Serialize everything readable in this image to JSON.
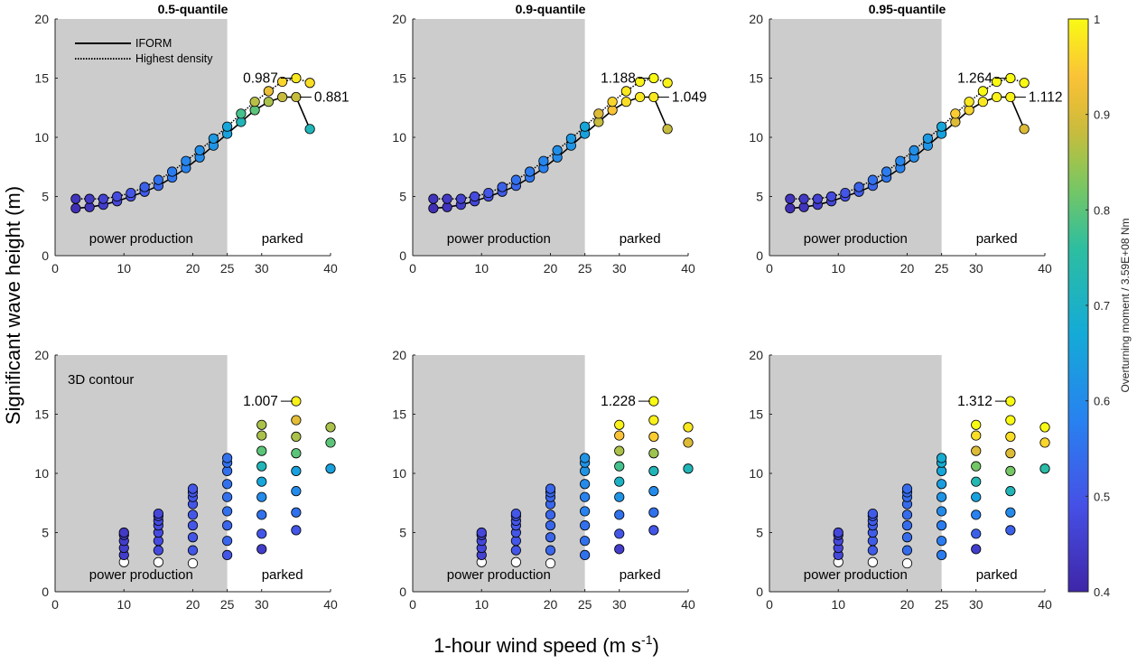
{
  "figure": {
    "ylabel": "Significant wave height (m)",
    "xlabel_main": "1-hour wind speed (m s",
    "xlabel_sup": "-1",
    "xlabel_end": ")",
    "colorbar_label": "Overturning moment / 3.59E+08 Nm",
    "colorbar_ticks": [
      "0.4",
      "0.5",
      "0.6",
      "0.7",
      "0.8",
      "0.9",
      "1"
    ],
    "colorbar_range": [
      0.4,
      1.0
    ],
    "legend": {
      "solid": "IFORM",
      "dotted": "Highest density"
    },
    "region_labels": {
      "power": "power production",
      "parked": "parked"
    },
    "contour3d_label": "3D contour"
  },
  "chart_data": [
    {
      "type": "scatter",
      "row": 1,
      "col": 1,
      "title": "0.5-quantile",
      "xlim": [
        0,
        40
      ],
      "ylim": [
        0,
        20
      ],
      "xticks": [
        "0",
        "10",
        "20",
        "25",
        "30",
        "40"
      ],
      "yticks": [
        "0",
        "5",
        "10",
        "15",
        "20"
      ],
      "shaded_x": [
        0,
        25
      ],
      "series": [
        {
          "name": "IFORM",
          "x": [
            3,
            5,
            7,
            9,
            11,
            13,
            15,
            17,
            19,
            21,
            23,
            25,
            27,
            29,
            31,
            33,
            35,
            37
          ],
          "y": [
            4.0,
            4.1,
            4.3,
            4.6,
            5.0,
            5.4,
            5.9,
            6.6,
            7.4,
            8.3,
            9.3,
            10.3,
            11.3,
            12.3,
            13.0,
            13.4,
            13.4,
            10.7
          ],
          "c": [
            0.42,
            0.43,
            0.45,
            0.47,
            0.49,
            0.51,
            0.53,
            0.56,
            0.58,
            0.6,
            0.62,
            0.65,
            0.72,
            0.8,
            0.86,
            0.88,
            0.88,
            0.72
          ]
        },
        {
          "name": "Highest density",
          "x": [
            3,
            5,
            7,
            9,
            11,
            13,
            15,
            17,
            19,
            21,
            23,
            25,
            27,
            29,
            31,
            33,
            35,
            37
          ],
          "y": [
            4.8,
            4.8,
            4.8,
            5.0,
            5.3,
            5.8,
            6.4,
            7.1,
            8.0,
            8.9,
            9.9,
            10.9,
            12.0,
            13.0,
            13.9,
            14.7,
            15.0,
            14.6
          ],
          "c": [
            0.43,
            0.44,
            0.46,
            0.48,
            0.5,
            0.52,
            0.55,
            0.57,
            0.59,
            0.61,
            0.63,
            0.66,
            0.78,
            0.87,
            0.92,
            0.96,
            0.98,
            0.97
          ]
        }
      ],
      "annotations": [
        {
          "text": "0.987",
          "x": 35,
          "y": 15.0
        },
        {
          "text": "0.881",
          "x": 35,
          "y": 13.4
        }
      ]
    },
    {
      "type": "scatter",
      "row": 1,
      "col": 2,
      "title": "0.9-quantile",
      "xlim": [
        0,
        40
      ],
      "ylim": [
        0,
        20
      ],
      "xticks": [
        "0",
        "10",
        "20",
        "25",
        "30",
        "40"
      ],
      "yticks": [
        "0",
        "5",
        "10",
        "15",
        "20"
      ],
      "shaded_x": [
        0,
        25
      ],
      "series": [
        {
          "name": "IFORM",
          "x": [
            3,
            5,
            7,
            9,
            11,
            13,
            15,
            17,
            19,
            21,
            23,
            25,
            27,
            29,
            31,
            33,
            35,
            37
          ],
          "y": [
            4.0,
            4.1,
            4.3,
            4.6,
            5.0,
            5.4,
            5.9,
            6.6,
            7.4,
            8.3,
            9.3,
            10.3,
            11.3,
            12.3,
            13.0,
            13.4,
            13.4,
            10.7
          ],
          "c": [
            0.42,
            0.43,
            0.45,
            0.47,
            0.49,
            0.51,
            0.53,
            0.56,
            0.58,
            0.6,
            0.62,
            0.65,
            0.88,
            0.94,
            0.97,
            0.98,
            0.98,
            0.88
          ]
        },
        {
          "name": "Highest density",
          "x": [
            3,
            5,
            7,
            9,
            11,
            13,
            15,
            17,
            19,
            21,
            23,
            25,
            27,
            29,
            31,
            33,
            35,
            37
          ],
          "y": [
            4.8,
            4.8,
            4.8,
            5.0,
            5.3,
            5.8,
            6.4,
            7.1,
            8.0,
            8.9,
            9.9,
            10.9,
            12.0,
            13.0,
            13.9,
            14.7,
            15.0,
            14.6
          ],
          "c": [
            0.43,
            0.44,
            0.46,
            0.48,
            0.5,
            0.52,
            0.55,
            0.57,
            0.59,
            0.61,
            0.63,
            0.66,
            0.9,
            0.96,
            0.98,
            0.99,
            1.0,
            0.99
          ]
        }
      ],
      "annotations": [
        {
          "text": "1.188",
          "x": 35,
          "y": 15.0
        },
        {
          "text": "1.049",
          "x": 35,
          "y": 13.4
        }
      ]
    },
    {
      "type": "scatter",
      "row": 1,
      "col": 3,
      "title": "0.95-quantile",
      "xlim": [
        0,
        40
      ],
      "ylim": [
        0,
        20
      ],
      "xticks": [
        "0",
        "10",
        "20",
        "25",
        "30",
        "40"
      ],
      "yticks": [
        "0",
        "5",
        "10",
        "15",
        "20"
      ],
      "shaded_x": [
        0,
        25
      ],
      "series": [
        {
          "name": "IFORM",
          "x": [
            3,
            5,
            7,
            9,
            11,
            13,
            15,
            17,
            19,
            21,
            23,
            25,
            27,
            29,
            31,
            33,
            35,
            37
          ],
          "y": [
            4.0,
            4.1,
            4.3,
            4.6,
            5.0,
            5.4,
            5.9,
            6.6,
            7.4,
            8.3,
            9.3,
            10.3,
            11.3,
            12.3,
            13.0,
            13.4,
            13.4,
            10.7
          ],
          "c": [
            0.42,
            0.43,
            0.45,
            0.47,
            0.49,
            0.51,
            0.53,
            0.56,
            0.58,
            0.6,
            0.62,
            0.65,
            0.9,
            0.96,
            0.98,
            0.99,
            0.99,
            0.9
          ]
        },
        {
          "name": "Highest density",
          "x": [
            3,
            5,
            7,
            9,
            11,
            13,
            15,
            17,
            19,
            21,
            23,
            25,
            27,
            29,
            31,
            33,
            35,
            37
          ],
          "y": [
            4.8,
            4.8,
            4.8,
            5.0,
            5.3,
            5.8,
            6.4,
            7.1,
            8.0,
            8.9,
            9.9,
            10.9,
            12.0,
            13.0,
            13.9,
            14.7,
            15.0,
            14.6
          ],
          "c": [
            0.43,
            0.44,
            0.46,
            0.48,
            0.5,
            0.52,
            0.55,
            0.57,
            0.59,
            0.61,
            0.63,
            0.66,
            0.95,
            0.98,
            1.0,
            1.0,
            1.0,
            1.0
          ]
        }
      ],
      "annotations": [
        {
          "text": "1.264",
          "x": 35,
          "y": 15.0
        },
        {
          "text": "1.112",
          "x": 35,
          "y": 13.4
        }
      ]
    },
    {
      "type": "scatter",
      "row": 2,
      "col": 1,
      "xlim": [
        0,
        40
      ],
      "ylim": [
        0,
        20
      ],
      "xticks": [
        "0",
        "10",
        "20",
        "25",
        "30",
        "40"
      ],
      "yticks": [
        "0",
        "5",
        "10",
        "15",
        "20"
      ],
      "shaded_x": [
        0,
        25
      ],
      "points": {
        "x": [
          10,
          10,
          10,
          10,
          10,
          10,
          15,
          15,
          15,
          15,
          15,
          15,
          15,
          15,
          20,
          20,
          20,
          20,
          20,
          20,
          20,
          20,
          20,
          25,
          25,
          25,
          25,
          25,
          25,
          25,
          25,
          25,
          30,
          30,
          30,
          30,
          30,
          30,
          30,
          30,
          30,
          35,
          35,
          35,
          35,
          35,
          35,
          35,
          35,
          40,
          40,
          40
        ],
        "y": [
          2.5,
          3.1,
          3.7,
          4.3,
          4.8,
          5.0,
          2.5,
          3.5,
          4.3,
          5.0,
          5.6,
          6.0,
          6.4,
          6.6,
          2.4,
          3.5,
          4.6,
          5.6,
          6.5,
          7.4,
          8.0,
          8.4,
          8.7,
          3.1,
          4.3,
          5.6,
          6.8,
          8.0,
          9.1,
          10.2,
          10.9,
          11.3,
          3.6,
          4.9,
          6.5,
          8.0,
          9.3,
          10.6,
          11.9,
          13.2,
          14.1,
          5.2,
          6.7,
          8.5,
          10.2,
          11.7,
          13.1,
          14.5,
          16.1,
          10.4,
          12.6,
          13.9
        ],
        "c": [
          null,
          0.45,
          0.45,
          0.45,
          0.45,
          0.44,
          null,
          0.48,
          0.48,
          0.48,
          0.48,
          0.48,
          0.48,
          0.47,
          null,
          0.5,
          0.5,
          0.5,
          0.5,
          0.5,
          0.5,
          0.5,
          0.5,
          0.5,
          0.53,
          0.53,
          0.55,
          0.55,
          0.55,
          0.55,
          0.55,
          0.55,
          0.45,
          0.5,
          0.55,
          0.6,
          0.66,
          0.72,
          0.8,
          0.86,
          0.86,
          0.5,
          0.55,
          0.6,
          0.65,
          0.8,
          0.86,
          0.91,
          0.99,
          0.65,
          0.8,
          0.86
        ]
      },
      "annotations": [
        {
          "text": "1.007",
          "x": 35,
          "y": 16.1
        }
      ]
    },
    {
      "type": "scatter",
      "row": 2,
      "col": 2,
      "xlim": [
        0,
        40
      ],
      "ylim": [
        0,
        20
      ],
      "xticks": [
        "0",
        "10",
        "20",
        "25",
        "30",
        "40"
      ],
      "yticks": [
        "0",
        "5",
        "10",
        "15",
        "20"
      ],
      "shaded_x": [
        0,
        25
      ],
      "points": {
        "x": [
          10,
          10,
          10,
          10,
          10,
          10,
          15,
          15,
          15,
          15,
          15,
          15,
          15,
          15,
          20,
          20,
          20,
          20,
          20,
          20,
          20,
          20,
          20,
          25,
          25,
          25,
          25,
          25,
          25,
          25,
          25,
          25,
          30,
          30,
          30,
          30,
          30,
          30,
          30,
          30,
          30,
          35,
          35,
          35,
          35,
          35,
          35,
          35,
          35,
          40,
          40,
          40
        ],
        "y": [
          2.5,
          3.1,
          3.7,
          4.3,
          4.8,
          5.0,
          2.5,
          3.5,
          4.3,
          5.0,
          5.6,
          6.0,
          6.4,
          6.6,
          2.4,
          3.5,
          4.6,
          5.6,
          6.5,
          7.4,
          8.0,
          8.4,
          8.7,
          3.1,
          4.3,
          5.6,
          6.8,
          8.0,
          9.1,
          10.2,
          10.9,
          11.3,
          3.6,
          4.9,
          6.5,
          8.0,
          9.3,
          10.6,
          11.9,
          13.2,
          14.1,
          5.2,
          6.7,
          8.5,
          10.2,
          11.7,
          13.1,
          14.5,
          16.1,
          10.4,
          12.6,
          13.9
        ],
        "c": [
          null,
          0.46,
          0.47,
          0.47,
          0.47,
          0.47,
          null,
          0.5,
          0.5,
          0.5,
          0.5,
          0.5,
          0.5,
          0.5,
          null,
          0.53,
          0.53,
          0.53,
          0.53,
          0.53,
          0.53,
          0.53,
          0.53,
          0.55,
          0.55,
          0.55,
          0.58,
          0.58,
          0.6,
          0.62,
          0.62,
          0.62,
          0.45,
          0.5,
          0.55,
          0.62,
          0.7,
          0.78,
          0.86,
          0.94,
          0.99,
          0.5,
          0.55,
          0.6,
          0.72,
          0.85,
          0.95,
          0.99,
          1.0,
          0.72,
          0.9,
          0.98
        ]
      },
      "annotations": [
        {
          "text": "1.228",
          "x": 35,
          "y": 16.1
        }
      ]
    },
    {
      "type": "scatter",
      "row": 2,
      "col": 3,
      "xlim": [
        0,
        40
      ],
      "ylim": [
        0,
        20
      ],
      "xticks": [
        "0",
        "10",
        "20",
        "25",
        "30",
        "40"
      ],
      "yticks": [
        "0",
        "5",
        "10",
        "15",
        "20"
      ],
      "shaded_x": [
        0,
        25
      ],
      "points": {
        "x": [
          10,
          10,
          10,
          10,
          10,
          10,
          15,
          15,
          15,
          15,
          15,
          15,
          15,
          15,
          20,
          20,
          20,
          20,
          20,
          20,
          20,
          20,
          20,
          25,
          25,
          25,
          25,
          25,
          25,
          25,
          25,
          25,
          30,
          30,
          30,
          30,
          30,
          30,
          30,
          30,
          30,
          35,
          35,
          35,
          35,
          35,
          35,
          35,
          35,
          40,
          40,
          40
        ],
        "y": [
          2.5,
          3.1,
          3.7,
          4.3,
          4.8,
          5.0,
          2.5,
          3.5,
          4.3,
          5.0,
          5.6,
          6.0,
          6.4,
          6.6,
          2.4,
          3.5,
          4.6,
          5.6,
          6.5,
          7.4,
          8.0,
          8.4,
          8.7,
          3.1,
          4.3,
          5.6,
          6.8,
          8.0,
          9.1,
          10.2,
          10.9,
          11.3,
          3.6,
          4.9,
          6.5,
          8.0,
          9.3,
          10.6,
          11.9,
          13.2,
          14.1,
          5.2,
          6.7,
          8.5,
          10.2,
          11.7,
          13.1,
          14.5,
          16.1,
          10.4,
          12.6,
          13.9
        ],
        "c": [
          null,
          0.47,
          0.47,
          0.47,
          0.47,
          0.47,
          null,
          0.51,
          0.51,
          0.51,
          0.51,
          0.51,
          0.51,
          0.51,
          null,
          0.54,
          0.54,
          0.54,
          0.54,
          0.54,
          0.54,
          0.54,
          0.54,
          0.57,
          0.57,
          0.57,
          0.6,
          0.62,
          0.64,
          0.66,
          0.68,
          0.68,
          0.45,
          0.52,
          0.58,
          0.65,
          0.73,
          0.82,
          0.9,
          0.97,
          1.0,
          0.52,
          0.6,
          0.72,
          0.82,
          0.9,
          0.97,
          1.0,
          1.0,
          0.75,
          0.96,
          1.0
        ]
      },
      "annotations": [
        {
          "text": "1.312",
          "x": 35,
          "y": 16.1
        }
      ]
    }
  ]
}
